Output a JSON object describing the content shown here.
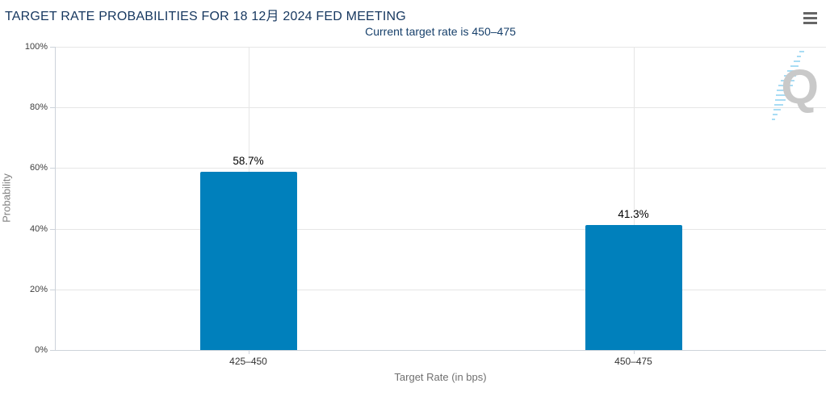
{
  "header": {
    "title": "TARGET RATE PROBABILITIES FOR 18 12月 2024 FED MEETING",
    "subtitle": "Current target rate is 450–475",
    "menu_icon": "hamburger-icon"
  },
  "chart_data": {
    "type": "bar",
    "title": "TARGET RATE PROBABILITIES FOR 18 12月 2024 FED MEETING",
    "subtitle": "Current target rate is 450–475",
    "categories": [
      "425–450",
      "450–475"
    ],
    "values": [
      58.7,
      41.3
    ],
    "data_labels": [
      "58.7%",
      "41.3%"
    ],
    "xlabel": "Target Rate (in bps)",
    "ylabel": "Probability",
    "ylim": [
      0,
      100
    ],
    "yticks": [
      "0%",
      "20%",
      "40%",
      "60%",
      "80%",
      "100%"
    ],
    "grid": true,
    "legend": "none",
    "bar_color_hex": "#0080BC"
  },
  "watermark": {
    "letter": "Q",
    "icon": "quikstrike-logo-icon"
  },
  "colors": {
    "title_text": "#16375F",
    "subtitle_text": "#17406B",
    "bar_fill": "#0080BC",
    "gridline": "#E6E6E6",
    "axis_line": "#CDD3DA",
    "tick_label": "#3D3D3D",
    "axis_title": "#707070",
    "data_label": "#000000",
    "menu_icon": "#666666",
    "watermark_q": "#C9C9C9",
    "watermark_dash": "#A8DCF4"
  }
}
